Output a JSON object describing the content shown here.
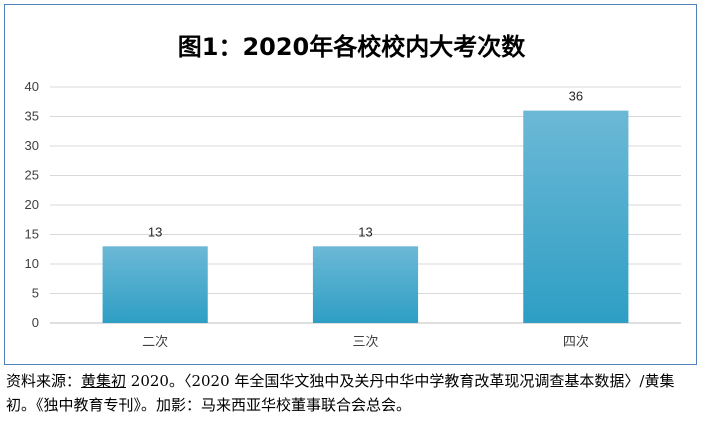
{
  "chart_data": {
    "type": "bar",
    "title": "图1：2020年各校校内大考次数",
    "categories": [
      "二次",
      "三次",
      "四次"
    ],
    "values": [
      13,
      13,
      36
    ],
    "ylim": [
      0,
      40
    ],
    "yticks": [
      0,
      5,
      10,
      15,
      20,
      25,
      30,
      35,
      40
    ],
    "grid": true,
    "bar_color_top": "#6cb9d6",
    "bar_color_bottom": "#2e9ec4"
  },
  "caption": {
    "prefix": "资料来源：",
    "author": "黄集初",
    "rest": " 2020。〈2020 年全国华文独中及关丹中华中学教育改革现况调查基本数据〉/黄集初。《独中教育专刊》。加影：马来西亚华校董事联合会总会。"
  }
}
